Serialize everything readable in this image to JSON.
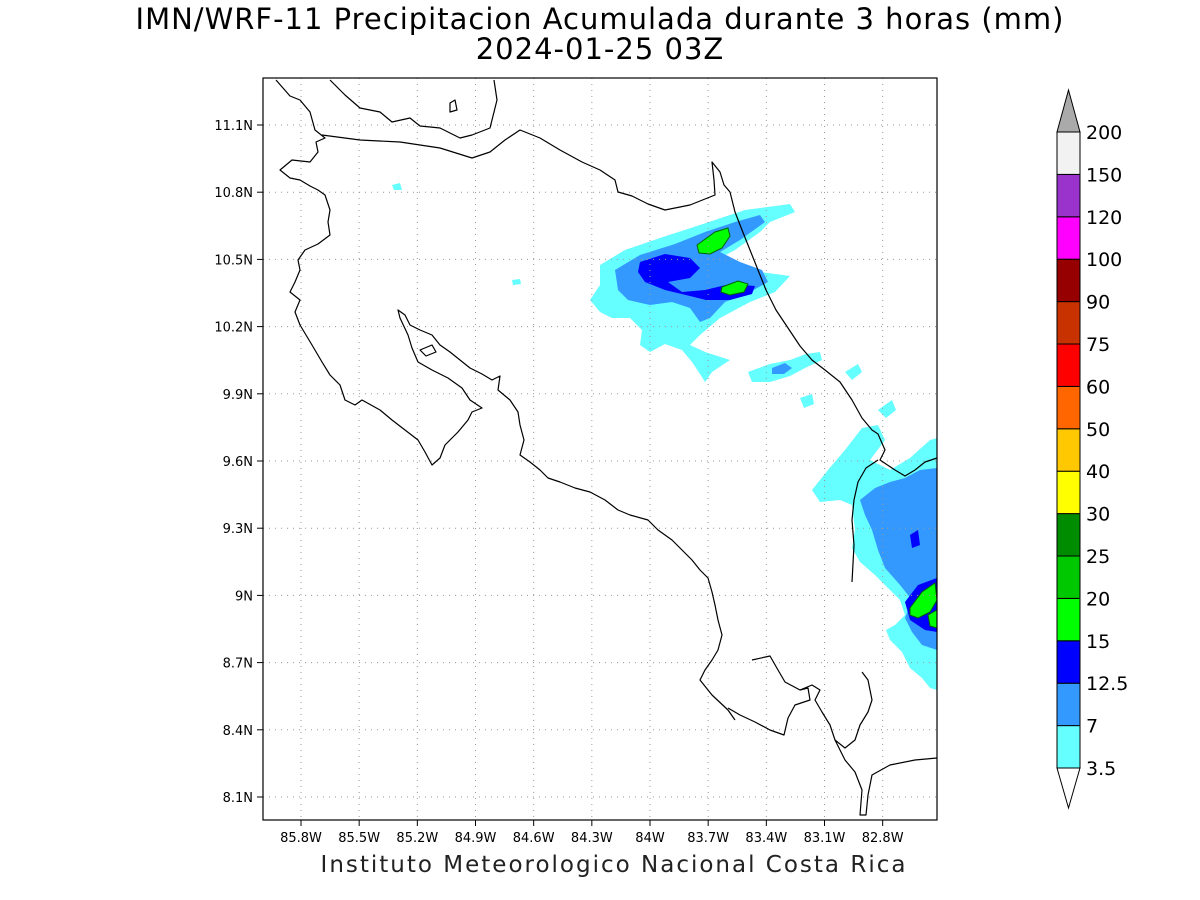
{
  "title": "IMN/WRF-11 Precipitacion Acumulada durante 3 horas (mm)",
  "subtitle": "2024-01-25 03Z",
  "footer": "Instituto Meteorologico Nacional Costa Rica",
  "map": {
    "lon_ticks": [
      "85.8W",
      "85.5W",
      "85.2W",
      "84.9W",
      "84.6W",
      "84.3W",
      "84W",
      "83.7W",
      "83.4W",
      "83.1W",
      "82.8W"
    ],
    "lat_ticks": [
      "11.1N",
      "10.8N",
      "10.5N",
      "10.2N",
      "9.9N",
      "9.6N",
      "9.3N",
      "9N",
      "8.7N",
      "8.4N",
      "8.1N"
    ],
    "lon_values": [
      -85.8,
      -85.5,
      -85.2,
      -84.9,
      -84.6,
      -84.3,
      -84.0,
      -83.7,
      -83.4,
      -83.1,
      -82.8
    ],
    "lat_values": [
      11.1,
      10.8,
      10.5,
      10.2,
      9.9,
      9.6,
      9.3,
      9.0,
      8.7,
      8.4,
      8.1
    ],
    "grid": "dotted"
  },
  "legend": {
    "labels": [
      "3.5",
      "7",
      "12.5",
      "15",
      "20",
      "25",
      "30",
      "40",
      "50",
      "60",
      "75",
      "90",
      "100",
      "120",
      "150",
      "200"
    ],
    "colors": [
      "#ffffff",
      "#66ffff",
      "#3399ff",
      "#0000ff",
      "#00ff00",
      "#00c800",
      "#008c00",
      "#ffff00",
      "#ffc800",
      "#ff6600",
      "#ff0000",
      "#c83200",
      "#960000",
      "#ff00ff",
      "#9933cc",
      "#f2f2f2"
    ],
    "arrow_colors": {
      "top": "#aaaaaa",
      "bottom": "#ffffff"
    }
  }
}
